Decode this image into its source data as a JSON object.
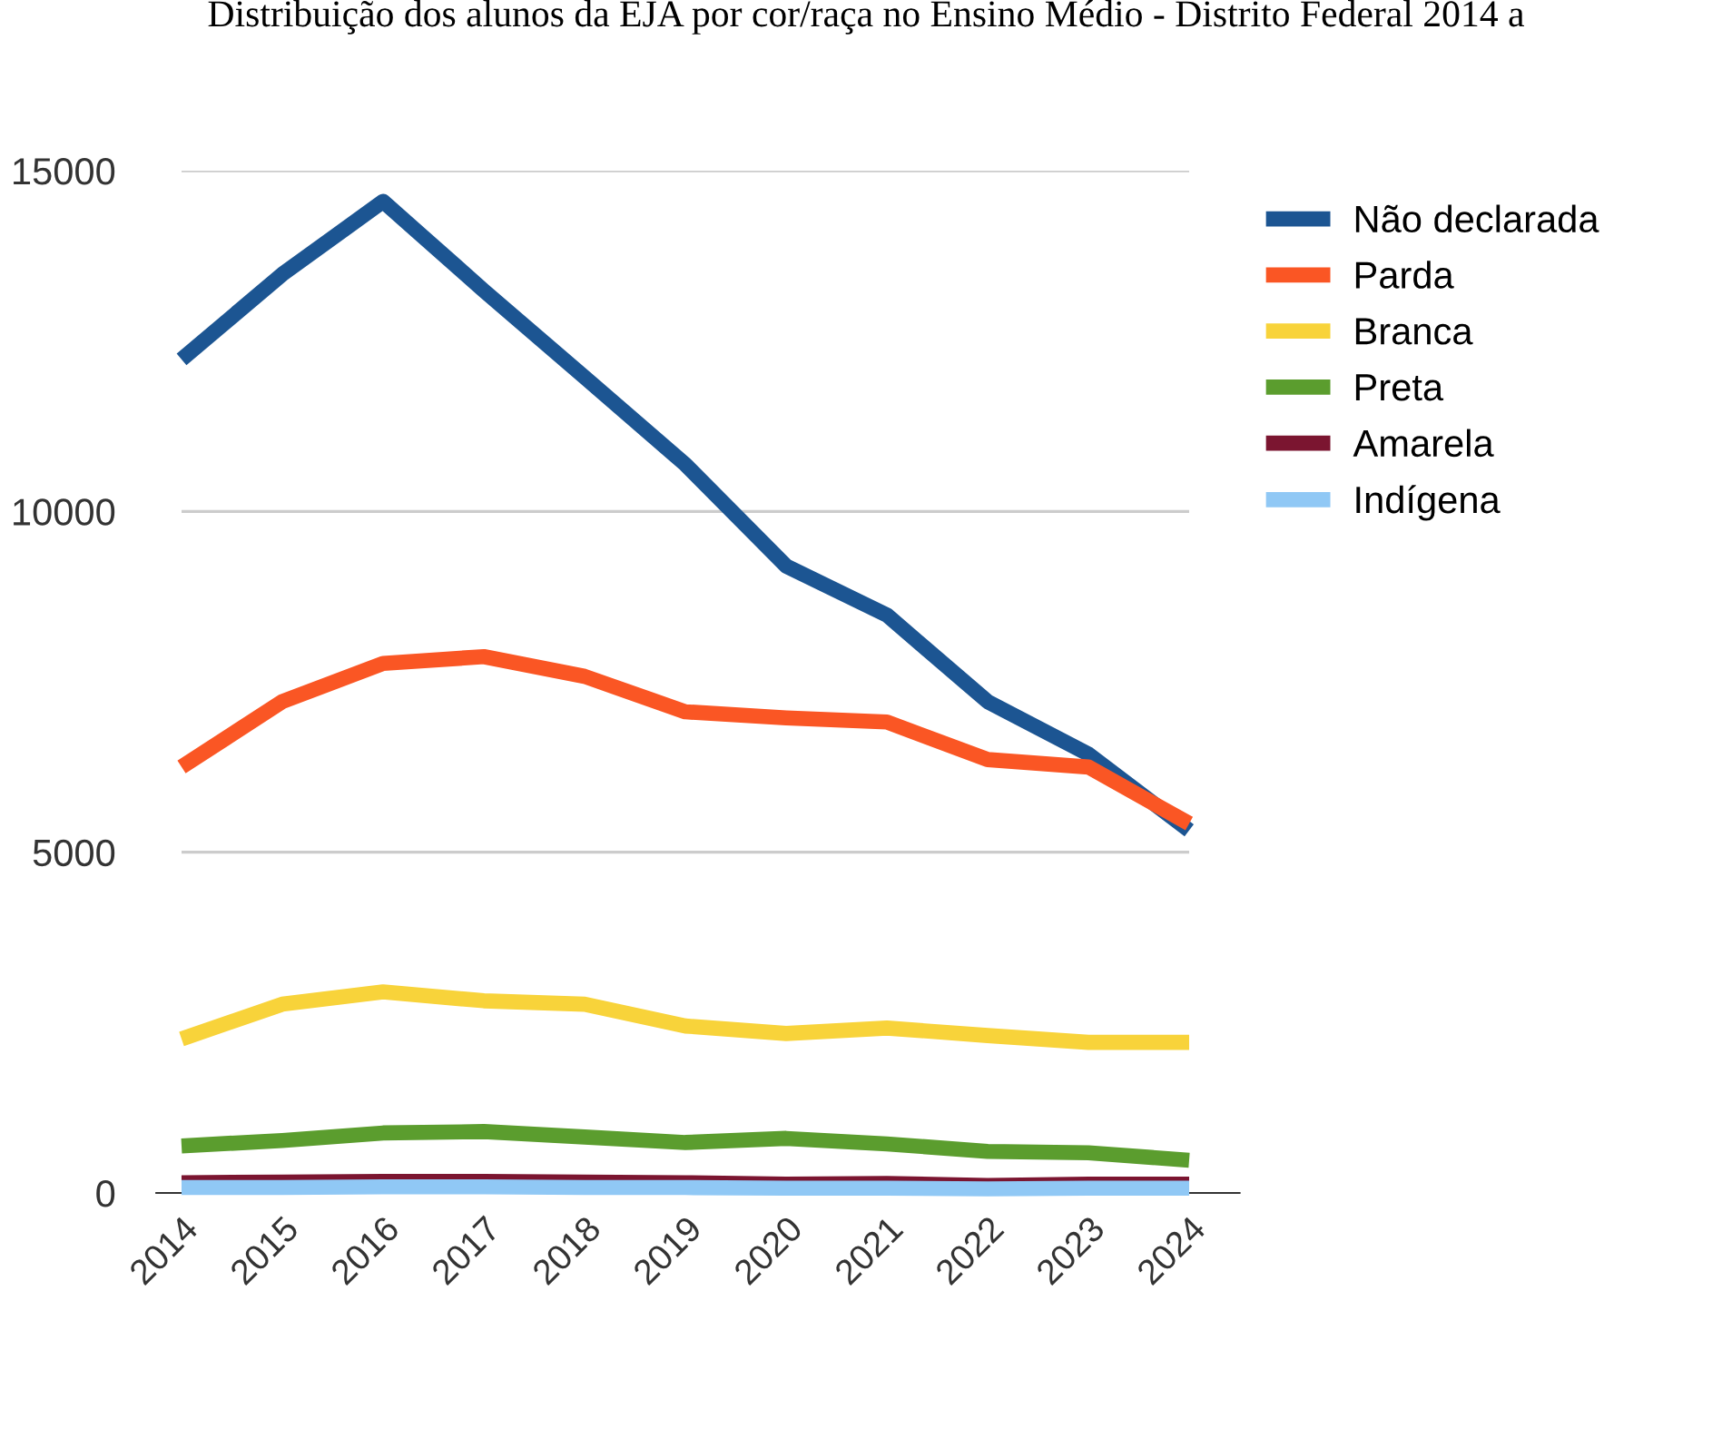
{
  "chart_data": {
    "type": "line",
    "title": "Distribuição dos alunos da EJA por cor/raça no Ensino Médio - Distrito Federal 2014 a",
    "categories": [
      "2014",
      "2015",
      "2016",
      "2017",
      "2018",
      "2019",
      "2020",
      "2021",
      "2022",
      "2023",
      "2024"
    ],
    "series": [
      {
        "name": "Não declarada",
        "color": "#1c5592",
        "values": [
          12230,
          13480,
          14550,
          13240,
          11970,
          10690,
          9200,
          8480,
          7210,
          6440,
          5320
        ]
      },
      {
        "name": "Parda",
        "color": "#fa5624",
        "values": [
          6250,
          7210,
          7770,
          7870,
          7580,
          7060,
          6970,
          6910,
          6360,
          6250,
          5420
        ]
      },
      {
        "name": "Branca",
        "color": "#f8d33a",
        "values": [
          2260,
          2770,
          2950,
          2820,
          2770,
          2450,
          2340,
          2420,
          2310,
          2210,
          2210
        ]
      },
      {
        "name": "Preta",
        "color": "#5b9d2e",
        "values": [
          690,
          770,
          880,
          900,
          820,
          740,
          800,
          720,
          610,
          590,
          480
        ]
      },
      {
        "name": "Amarela",
        "color": "#7b1530",
        "values": [
          150,
          160,
          170,
          170,
          160,
          150,
          130,
          140,
          110,
          130,
          130
        ]
      },
      {
        "name": "Indígena",
        "color": "#90c8f5",
        "values": [
          80,
          80,
          90,
          90,
          80,
          80,
          70,
          70,
          60,
          70,
          70
        ]
      }
    ],
    "ylim": [
      0,
      15000
    ],
    "yticks": [
      0,
      5000,
      10000,
      15000
    ],
    "grid": "y",
    "legend": "top right",
    "marker": "none",
    "line_style": "solid"
  }
}
